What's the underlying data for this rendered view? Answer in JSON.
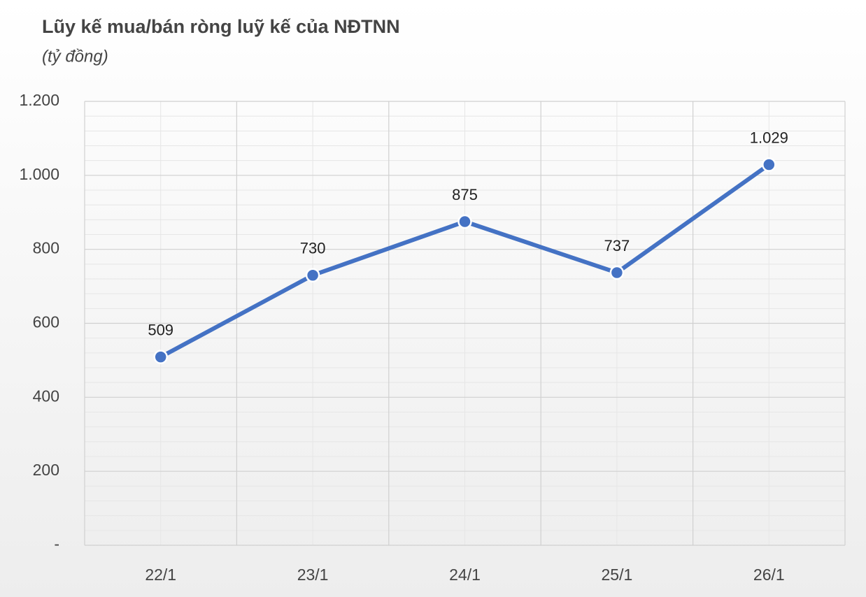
{
  "chart_data": {
    "type": "line",
    "title": "Lũy kế mua/bán ròng luỹ kế của NĐTNN",
    "subtitle": "(tỷ đồng)",
    "categories": [
      "22/1",
      "23/1",
      "24/1",
      "25/1",
      "26/1"
    ],
    "values": [
      509,
      730,
      875,
      737,
      1029
    ],
    "value_labels": [
      "509",
      "730",
      "875",
      "737",
      "1.029"
    ],
    "color": "#4472c4",
    "ylim": [
      0,
      1200
    ],
    "yticks": [
      {
        "value": 0,
        "label": "-"
      },
      200,
      400,
      600,
      800,
      {
        "value": 1000,
        "label": "1.000"
      },
      {
        "value": 1200,
        "label": "1.200"
      }
    ],
    "grid": true,
    "minor_grid": true
  }
}
